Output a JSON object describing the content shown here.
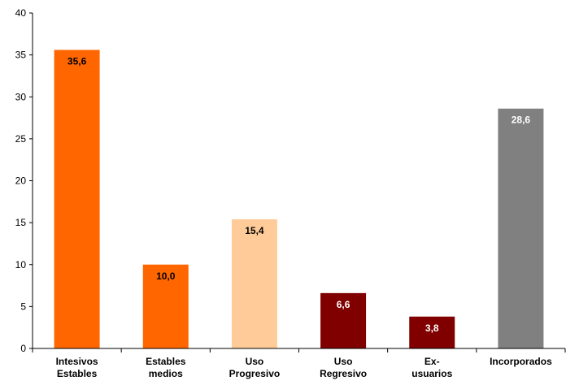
{
  "chart_data": {
    "type": "bar",
    "categories": [
      [
        "Intesivos",
        "Estables"
      ],
      [
        "Estables",
        "medios"
      ],
      [
        "Uso",
        "Progresivo"
      ],
      [
        "Uso",
        "Regresivo"
      ],
      [
        "Ex-",
        "usuarios"
      ],
      [
        "Incorporados"
      ]
    ],
    "values": [
      35.6,
      10.0,
      15.4,
      6.6,
      3.8,
      28.6
    ],
    "data_labels": [
      "35,6",
      "10,0",
      "15,4",
      "6,6",
      "3,8",
      "28,6"
    ],
    "bar_colors": [
      "#ff6600",
      "#ff6600",
      "#ffcc99",
      "#800000",
      "#800000",
      "#808080"
    ],
    "data_label_colors": [
      "#000000",
      "#000000",
      "#000000",
      "#ffffff",
      "#ffffff",
      "#ffffff"
    ],
    "ylim": [
      0,
      40
    ],
    "yticks": [
      "0",
      "5",
      "10",
      "15",
      "20",
      "25",
      "30",
      "35",
      "40"
    ],
    "grid": false,
    "legend": "none",
    "axis_color": "#000000"
  }
}
